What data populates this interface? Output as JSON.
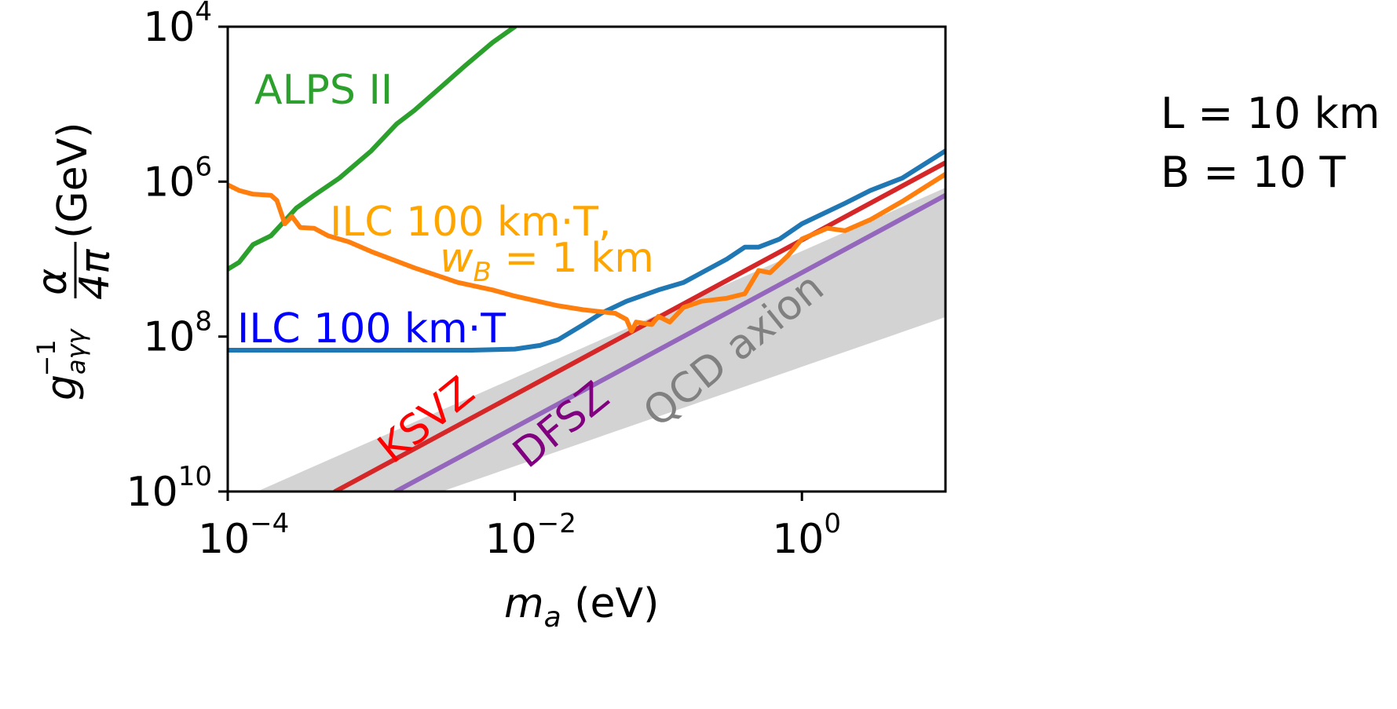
{
  "chart_data": {
    "type": "line",
    "xscale": "log",
    "yscale": "log",
    "y_inverted": true,
    "xlim": [
      0.0001,
      10
    ],
    "ylim": [
      10000,
      10000000000
    ],
    "xlabel_parts": [
      "m",
      "a",
      " (eV)"
    ],
    "ylabel_parts": [
      "g",
      "aγγ",
      "−1",
      "α",
      "4π",
      " (GeV)"
    ],
    "x_ticks": [
      {
        "value": 0.0001,
        "base": "10",
        "exp": "−4"
      },
      {
        "value": 0.01,
        "base": "10",
        "exp": "−2"
      },
      {
        "value": 1,
        "base": "10",
        "exp": "0"
      }
    ],
    "y_ticks": [
      {
        "value": 10000,
        "base": "10",
        "exp": "4"
      },
      {
        "value": 1000000,
        "base": "10",
        "exp": "6"
      },
      {
        "value": 100000000,
        "base": "10",
        "exp": "8"
      },
      {
        "value": 10000000000,
        "base": "10",
        "exp": "10"
      }
    ],
    "band": {
      "name": "QCD axion",
      "color": "#d3d3d3",
      "upper": [
        [
          0.00016,
          10000000000
        ],
        [
          10,
          1200000
        ]
      ],
      "lower": [
        [
          0.0031,
          10000000000
        ],
        [
          10,
          56000000
        ]
      ]
    },
    "series": [
      {
        "name": "ALPS II",
        "color": "#2ca02c",
        "points": [
          [
            0.0001,
            13500000
          ],
          [
            0.00012,
            11000000
          ],
          [
            0.00015,
            6500000
          ],
          [
            0.0002,
            5000000
          ],
          [
            0.00025,
            3200000
          ],
          [
            0.0003,
            2200000
          ],
          [
            0.0004,
            1500000
          ],
          [
            0.0006,
            900000
          ],
          [
            0.001,
            400000
          ],
          [
            0.0015,
            180000
          ],
          [
            0.002,
            120000
          ],
          [
            0.003,
            62000
          ],
          [
            0.0045,
            32000
          ],
          [
            0.007,
            16000
          ],
          [
            0.01,
            10000
          ]
        ]
      },
      {
        "name": "ILC 100 km·T,",
        "color": "#ff7f0e",
        "points": [
          [
            0.0001,
            1100000
          ],
          [
            0.00012,
            1300000
          ],
          [
            0.00015,
            1450000
          ],
          [
            0.0002,
            1500000
          ],
          [
            0.00022,
            1750000
          ],
          [
            0.00025,
            3500000
          ],
          [
            0.00028,
            2800000
          ],
          [
            0.00032,
            3900000
          ],
          [
            0.0004,
            4000000
          ],
          [
            0.0005,
            5000000
          ],
          [
            0.0007,
            6000000
          ],
          [
            0.001,
            8000000
          ],
          [
            0.002,
            13000000
          ],
          [
            0.004,
            20000000
          ],
          [
            0.007,
            25000000
          ],
          [
            0.01,
            30000000
          ],
          [
            0.02,
            40000000
          ],
          [
            0.03,
            45000000
          ],
          [
            0.05,
            50000000
          ],
          [
            0.06,
            60000000
          ],
          [
            0.065,
            85000000
          ],
          [
            0.07,
            65000000
          ],
          [
            0.09,
            70000000
          ],
          [
            0.1,
            55000000
          ],
          [
            0.12,
            65000000
          ],
          [
            0.15,
            42000000
          ],
          [
            0.2,
            35000000
          ],
          [
            0.3,
            32000000
          ],
          [
            0.4,
            28000000
          ],
          [
            0.5,
            14000000
          ],
          [
            0.6,
            15000000
          ],
          [
            0.8,
            9000000
          ],
          [
            1,
            5500000
          ],
          [
            1.5,
            4000000
          ],
          [
            2,
            4300000
          ],
          [
            3,
            3100000
          ],
          [
            5,
            1800000
          ],
          [
            10,
            800000
          ]
        ]
      },
      {
        "name": "ILC 100 km·T",
        "color": "#1f77b4",
        "points": [
          [
            0.0001,
            150000000
          ],
          [
            0.001,
            150000000
          ],
          [
            0.005,
            150000000
          ],
          [
            0.01,
            145000000
          ],
          [
            0.015,
            130000000
          ],
          [
            0.02,
            110000000
          ],
          [
            0.03,
            70000000
          ],
          [
            0.04,
            50000000
          ],
          [
            0.06,
            35000000
          ],
          [
            0.1,
            25000000
          ],
          [
            0.15,
            20000000
          ],
          [
            0.2,
            15000000
          ],
          [
            0.3,
            10000000
          ],
          [
            0.4,
            7000000
          ],
          [
            0.5,
            7000000
          ],
          [
            0.7,
            5500000
          ],
          [
            1,
            3500000
          ],
          [
            2,
            1900000
          ],
          [
            3,
            1300000
          ],
          [
            5,
            900000
          ],
          [
            10,
            400000
          ]
        ]
      },
      {
        "name": "KSVZ",
        "color": "#d62728",
        "points": [
          [
            0.00056,
            10000000000
          ],
          [
            10,
            570000
          ]
        ]
      },
      {
        "name": "DFSZ",
        "color": "#9467bd",
        "points": [
          [
            0.00148,
            10000000000
          ],
          [
            10,
            1500000
          ]
        ]
      }
    ],
    "annotations": {
      "alps": "ALPS II",
      "ilc_wb_line1": "ILC 100 km·T,",
      "ilc_wb_w": "w",
      "ilc_wb_sub": "B",
      "ilc_wb_rest": " = 1 km",
      "ilc": "ILC 100 km·T",
      "ksvz": "KSVZ",
      "dfsz": "DFSZ",
      "qcd": "QCD axion"
    },
    "annotation_colors": {
      "alps": "#2ca02c",
      "ilc_wb": "#ffa500",
      "ilc": "#0000ff",
      "ksvz": "#ff0000",
      "dfsz": "#800080",
      "qcd": "#808080"
    }
  },
  "side_notes": {
    "length": "L = 10 km",
    "field": "B = 10 T"
  }
}
